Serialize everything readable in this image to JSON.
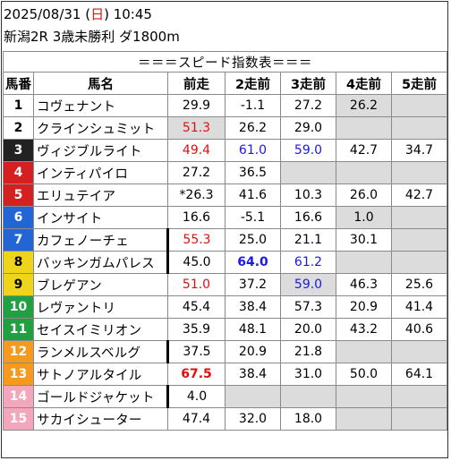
{
  "header": {
    "datetime_prefix": "2025/08/31 (",
    "weekday": "日",
    "datetime_suffix": ") 10:45",
    "race": "新潟2R 3歳未勝利 ダ1800m"
  },
  "banner": "＝＝＝スピード指数表＝＝＝",
  "columns": [
    "馬番",
    "馬名",
    "前走",
    "2走前",
    "3走前",
    "4走前",
    "5走前"
  ],
  "colors": {
    "gate1": "#ffffff",
    "gate2": "#222222",
    "gate3": "#d42020",
    "gate4": "#2266d6",
    "gate5": "#efd41c",
    "gate6": "#20a040",
    "gate7": "#f59a1e",
    "gate8": "#f4a6bc",
    "value_red": "#e01010",
    "value_blue": "#1a1ae0",
    "cell_gray": "#dcdcdc"
  },
  "rows": [
    {
      "no": "1",
      "gate": 1,
      "name": "コヴェナント",
      "thick": false,
      "cells": [
        {
          "v": "29.9"
        },
        {
          "v": "-1.1"
        },
        {
          "v": "27.2"
        },
        {
          "v": "26.2",
          "bg": "gray"
        },
        {
          "v": "",
          "bg": "gray"
        }
      ]
    },
    {
      "no": "2",
      "gate": 1,
      "name": "クラインシュミット",
      "thick": false,
      "cells": [
        {
          "v": "51.3",
          "c": "red",
          "bg": "gray"
        },
        {
          "v": "26.2"
        },
        {
          "v": "29.0"
        },
        {
          "v": "",
          "bg": "gray"
        },
        {
          "v": "",
          "bg": "gray"
        }
      ]
    },
    {
      "no": "3",
      "gate": 2,
      "name": "ヴィジブルライト",
      "thick": false,
      "cells": [
        {
          "v": "49.4",
          "c": "red"
        },
        {
          "v": "61.0",
          "c": "blue"
        },
        {
          "v": "59.0",
          "c": "blue"
        },
        {
          "v": "42.7"
        },
        {
          "v": "34.7"
        }
      ]
    },
    {
      "no": "4",
      "gate": 3,
      "name": "インティパイロ",
      "thick": false,
      "cells": [
        {
          "v": "27.2"
        },
        {
          "v": "36.5"
        },
        {
          "v": "",
          "bg": "gray"
        },
        {
          "v": "",
          "bg": "gray"
        },
        {
          "v": "",
          "bg": "gray"
        }
      ]
    },
    {
      "no": "5",
      "gate": 3,
      "name": "エリュテイア",
      "thick": false,
      "cells": [
        {
          "v": "*26.3"
        },
        {
          "v": "41.6"
        },
        {
          "v": "10.3"
        },
        {
          "v": "26.0"
        },
        {
          "v": "42.7"
        }
      ]
    },
    {
      "no": "6",
      "gate": 4,
      "name": "インサイト",
      "thick": false,
      "cells": [
        {
          "v": "16.6"
        },
        {
          "v": "-5.1"
        },
        {
          "v": "16.6"
        },
        {
          "v": "1.0",
          "bg": "gray"
        },
        {
          "v": "",
          "bg": "gray"
        }
      ]
    },
    {
      "no": "7",
      "gate": 4,
      "name": "カフェノーチェ",
      "thick": true,
      "cells": [
        {
          "v": "55.3",
          "c": "red"
        },
        {
          "v": "25.0"
        },
        {
          "v": "21.1"
        },
        {
          "v": "30.1"
        },
        {
          "v": "",
          "bg": "gray"
        }
      ]
    },
    {
      "no": "8",
      "gate": 5,
      "name": "バッキンガムパレス",
      "thick": true,
      "cells": [
        {
          "v": "45.0"
        },
        {
          "v": "64.0",
          "c": "blue",
          "b": true
        },
        {
          "v": "61.2",
          "c": "blue"
        },
        {
          "v": "",
          "bg": "gray"
        },
        {
          "v": "",
          "bg": "gray"
        }
      ]
    },
    {
      "no": "9",
      "gate": 5,
      "name": "ブレゲアン",
      "thick": false,
      "cells": [
        {
          "v": "51.0",
          "c": "red"
        },
        {
          "v": "37.2"
        },
        {
          "v": "59.0",
          "c": "blue",
          "bg": "gray"
        },
        {
          "v": "46.3"
        },
        {
          "v": "25.6"
        }
      ]
    },
    {
      "no": "10",
      "gate": 6,
      "name": "レヴァントリ",
      "thick": false,
      "cells": [
        {
          "v": "45.4"
        },
        {
          "v": "38.4"
        },
        {
          "v": "57.3"
        },
        {
          "v": "20.9"
        },
        {
          "v": "41.4"
        }
      ]
    },
    {
      "no": "11",
      "gate": 6,
      "name": "セイスイミリオン",
      "thick": false,
      "cells": [
        {
          "v": "35.9"
        },
        {
          "v": "48.1"
        },
        {
          "v": "20.0"
        },
        {
          "v": "43.2"
        },
        {
          "v": "40.6"
        }
      ]
    },
    {
      "no": "12",
      "gate": 7,
      "name": "ランメルスベルグ",
      "thick": true,
      "cells": [
        {
          "v": "37.5"
        },
        {
          "v": "20.9"
        },
        {
          "v": "21.8"
        },
        {
          "v": "",
          "bg": "gray"
        },
        {
          "v": "",
          "bg": "gray"
        }
      ]
    },
    {
      "no": "13",
      "gate": 7,
      "name": "サトノアルタイル",
      "thick": false,
      "cells": [
        {
          "v": "67.5",
          "c": "red",
          "b": true
        },
        {
          "v": "38.4"
        },
        {
          "v": "31.0"
        },
        {
          "v": "50.0"
        },
        {
          "v": "64.1"
        }
      ]
    },
    {
      "no": "14",
      "gate": 8,
      "name": "ゴールドジャケット",
      "thick": true,
      "cells": [
        {
          "v": "4.0"
        },
        {
          "v": "",
          "bg": "gray"
        },
        {
          "v": "",
          "bg": "gray"
        },
        {
          "v": "",
          "bg": "gray"
        },
        {
          "v": "",
          "bg": "gray"
        }
      ]
    },
    {
      "no": "15",
      "gate": 8,
      "name": "サカイシューター",
      "thick": false,
      "cells": [
        {
          "v": "47.4"
        },
        {
          "v": "32.0"
        },
        {
          "v": "18.0"
        },
        {
          "v": "",
          "bg": "gray"
        },
        {
          "v": "",
          "bg": "gray"
        }
      ]
    }
  ]
}
